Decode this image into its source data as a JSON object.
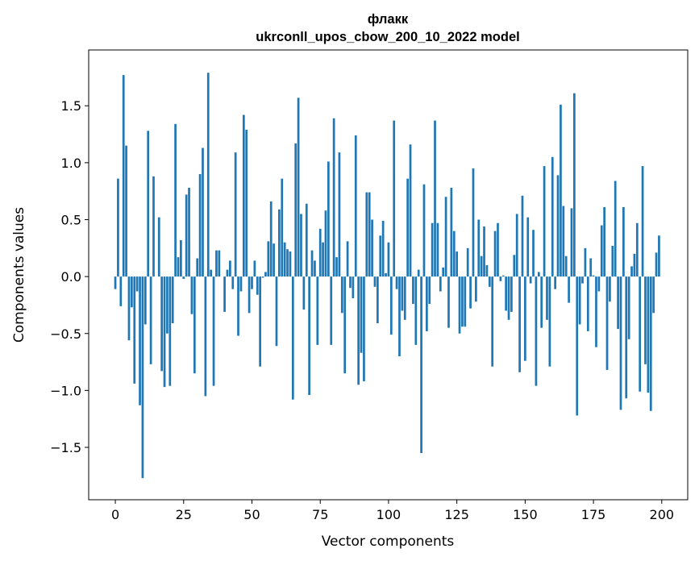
{
  "chart_data": {
    "type": "bar",
    "title_line1": "флакк",
    "title_line2": "ukrconll_upos_cbow_200_10_2022 model",
    "xlabel": "Vector components",
    "ylabel": "Components values",
    "xlim": [
      -9.75,
      209.5
    ],
    "ylim": [
      -1.96,
      1.99
    ],
    "xticks": [
      0,
      25,
      50,
      75,
      100,
      125,
      150,
      175,
      200
    ],
    "xtick_labels": [
      "0",
      "25",
      "50",
      "75",
      "100",
      "125",
      "150",
      "175",
      "200"
    ],
    "yticks": [
      -1.5,
      -1.0,
      -0.5,
      0.0,
      0.5,
      1.0,
      1.5
    ],
    "ytick_labels": [
      "−1.5",
      "−1.0",
      "−0.5",
      "0.0",
      "0.5",
      "1.0",
      "1.5"
    ],
    "grid": false,
    "bar_color": "#1f77b4",
    "values": [
      -0.11,
      0.86,
      -0.26,
      1.77,
      1.15,
      -0.56,
      -0.27,
      -0.94,
      -0.13,
      -1.13,
      -1.77,
      -0.42,
      1.28,
      -0.77,
      0.88,
      0.0,
      0.52,
      -0.83,
      -0.97,
      -0.5,
      -0.96,
      -0.41,
      1.34,
      0.17,
      0.32,
      -0.02,
      0.72,
      0.78,
      -0.33,
      -0.85,
      0.16,
      0.9,
      1.13,
      -1.05,
      1.79,
      0.06,
      -0.96,
      0.23,
      0.23,
      0.0,
      -0.31,
      0.06,
      0.14,
      -0.11,
      1.09,
      -0.52,
      -0.13,
      1.42,
      1.29,
      -0.32,
      -0.11,
      0.14,
      -0.16,
      -0.79,
      -0.01,
      0.04,
      0.31,
      0.66,
      0.29,
      -0.61,
      0.59,
      0.86,
      0.3,
      0.24,
      0.22,
      -1.08,
      1.17,
      1.57,
      0.55,
      -0.29,
      0.64,
      -1.04,
      0.23,
      0.14,
      -0.6,
      0.42,
      0.3,
      0.58,
      1.01,
      -0.6,
      1.39,
      0.17,
      1.09,
      -0.32,
      -0.85,
      0.31,
      -0.1,
      -0.19,
      1.24,
      -0.95,
      -0.67,
      -0.92,
      0.74,
      0.74,
      0.5,
      -0.09,
      -0.41,
      0.36,
      0.49,
      0.03,
      0.3,
      -0.51,
      1.37,
      -0.11,
      -0.7,
      -0.3,
      -0.38,
      0.86,
      1.16,
      -0.24,
      -0.6,
      0.06,
      -1.55,
      0.81,
      -0.48,
      -0.24,
      0.47,
      1.37,
      0.47,
      -0.13,
      0.08,
      0.7,
      -0.45,
      0.78,
      0.4,
      0.22,
      -0.5,
      -0.44,
      -0.44,
      0.25,
      -0.28,
      0.95,
      -0.22,
      0.5,
      0.18,
      0.44,
      0.1,
      -0.09,
      -0.79,
      0.4,
      0.47,
      -0.04,
      0.01,
      -0.3,
      -0.38,
      -0.31,
      0.19,
      0.55,
      -0.84,
      0.71,
      -0.74,
      0.52,
      -0.06,
      0.41,
      -0.96,
      0.04,
      -0.45,
      0.97,
      -0.38,
      -0.79,
      1.05,
      -0.11,
      0.89,
      1.51,
      0.62,
      0.18,
      -0.23,
      0.6,
      1.61,
      -1.22,
      -0.42,
      -0.06,
      0.25,
      -0.48,
      0.16,
      0.01,
      -0.62,
      -0.13,
      0.45,
      0.61,
      -0.82,
      -0.22,
      0.27,
      0.84,
      -0.46,
      -1.17,
      0.61,
      -1.07,
      -0.55,
      0.09,
      0.2,
      0.47,
      -1.01,
      0.97,
      -0.77,
      -1.02,
      -1.18,
      -0.32,
      0.21,
      0.36
    ]
  }
}
